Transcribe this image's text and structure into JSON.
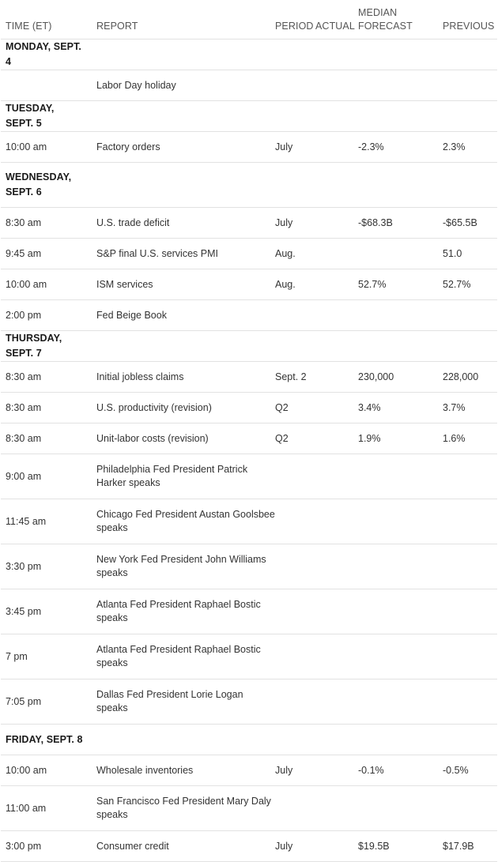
{
  "headers": {
    "time": "TIME (ET)",
    "report": "REPORT",
    "period": "PERIOD",
    "actual": "ACTUAL",
    "forecast_line1": "MEDIAN",
    "forecast_line2": "FORECAST",
    "previous": "PREVIOUS"
  },
  "rows": [
    {
      "type": "day",
      "label": "MONDAY, SEPT. 4"
    },
    {
      "type": "event",
      "time": "",
      "report": "Labor Day holiday",
      "period": "",
      "actual": "",
      "forecast": "",
      "previous": ""
    },
    {
      "type": "day",
      "label": "TUESDAY, SEPT. 5"
    },
    {
      "type": "event",
      "time": "10:00 am",
      "report": "Factory orders",
      "period": "July",
      "actual": "",
      "forecast": "-2.3%",
      "previous": "2.3%"
    },
    {
      "type": "day",
      "label": "WEDNESDAY, SEPT. 6",
      "tall": true
    },
    {
      "type": "event",
      "time": "8:30 am",
      "report": "U.S. trade deficit",
      "period": "July",
      "actual": "",
      "forecast": "-$68.3B",
      "previous": "-$65.5B"
    },
    {
      "type": "event",
      "time": "9:45 am",
      "report": "S&P final U.S. services PMI",
      "period": "Aug.",
      "actual": "",
      "forecast": "",
      "previous": "51.0"
    },
    {
      "type": "event",
      "time": "10:00 am",
      "report": "ISM services",
      "period": "Aug.",
      "actual": "",
      "forecast": "52.7%",
      "previous": "52.7%"
    },
    {
      "type": "event",
      "time": "2:00 pm",
      "report": "Fed Beige Book",
      "period": "",
      "actual": "",
      "forecast": "",
      "previous": ""
    },
    {
      "type": "day",
      "label": "THURSDAY, SEPT. 7"
    },
    {
      "type": "event",
      "time": "8:30 am",
      "report": "Initial jobless claims",
      "period": "Sept. 2",
      "actual": "",
      "forecast": "230,000",
      "previous": "228,000"
    },
    {
      "type": "event",
      "time": "8:30 am",
      "report": "U.S. productivity (revision)",
      "period": "Q2",
      "actual": "",
      "forecast": "3.4%",
      "previous": "3.7%"
    },
    {
      "type": "event",
      "time": "8:30 am",
      "report": "Unit-labor costs (revision)",
      "period": "Q2",
      "actual": "",
      "forecast": "1.9%",
      "previous": "1.6%"
    },
    {
      "type": "event",
      "tall": true,
      "time": "9:00 am",
      "report": "Philadelphia Fed President Patrick Harker speaks",
      "period": "",
      "actual": "",
      "forecast": "",
      "previous": ""
    },
    {
      "type": "event",
      "tall": true,
      "time": "11:45 am",
      "report": "Chicago Fed President Austan Goolsbee speaks",
      "period": "",
      "actual": "",
      "forecast": "",
      "previous": ""
    },
    {
      "type": "event",
      "tall": true,
      "time": "3:30 pm",
      "report": "New York Fed President John Williams speaks",
      "period": "",
      "actual": "",
      "forecast": "",
      "previous": ""
    },
    {
      "type": "event",
      "tall": true,
      "time": "3:45 pm",
      "report": "Atlanta Fed President Raphael Bostic speaks",
      "period": "",
      "actual": "",
      "forecast": "",
      "previous": ""
    },
    {
      "type": "event",
      "tall": true,
      "time": "7 pm",
      "report": "Atlanta Fed President Raphael Bostic speaks",
      "period": "",
      "actual": "",
      "forecast": "",
      "previous": ""
    },
    {
      "type": "event",
      "tall": true,
      "time": "7:05 pm",
      "report": "Dallas Fed President Lorie Logan speaks",
      "period": "",
      "actual": "",
      "forecast": "",
      "previous": ""
    },
    {
      "type": "day",
      "label": "FRIDAY, SEPT. 8"
    },
    {
      "type": "event",
      "time": "10:00 am",
      "report": "Wholesale inventories",
      "period": "July",
      "actual": "",
      "forecast": "-0.1%",
      "previous": "-0.5%"
    },
    {
      "type": "event",
      "tall": true,
      "time": "11:00 am",
      "report": "San Francisco Fed President Mary Daly speaks",
      "period": "",
      "actual": "",
      "forecast": "",
      "previous": ""
    },
    {
      "type": "event",
      "time": "3:00 pm",
      "report": "Consumer credit",
      "period": "July",
      "actual": "",
      "forecast": "$19.5B",
      "previous": "$17.9B"
    }
  ]
}
